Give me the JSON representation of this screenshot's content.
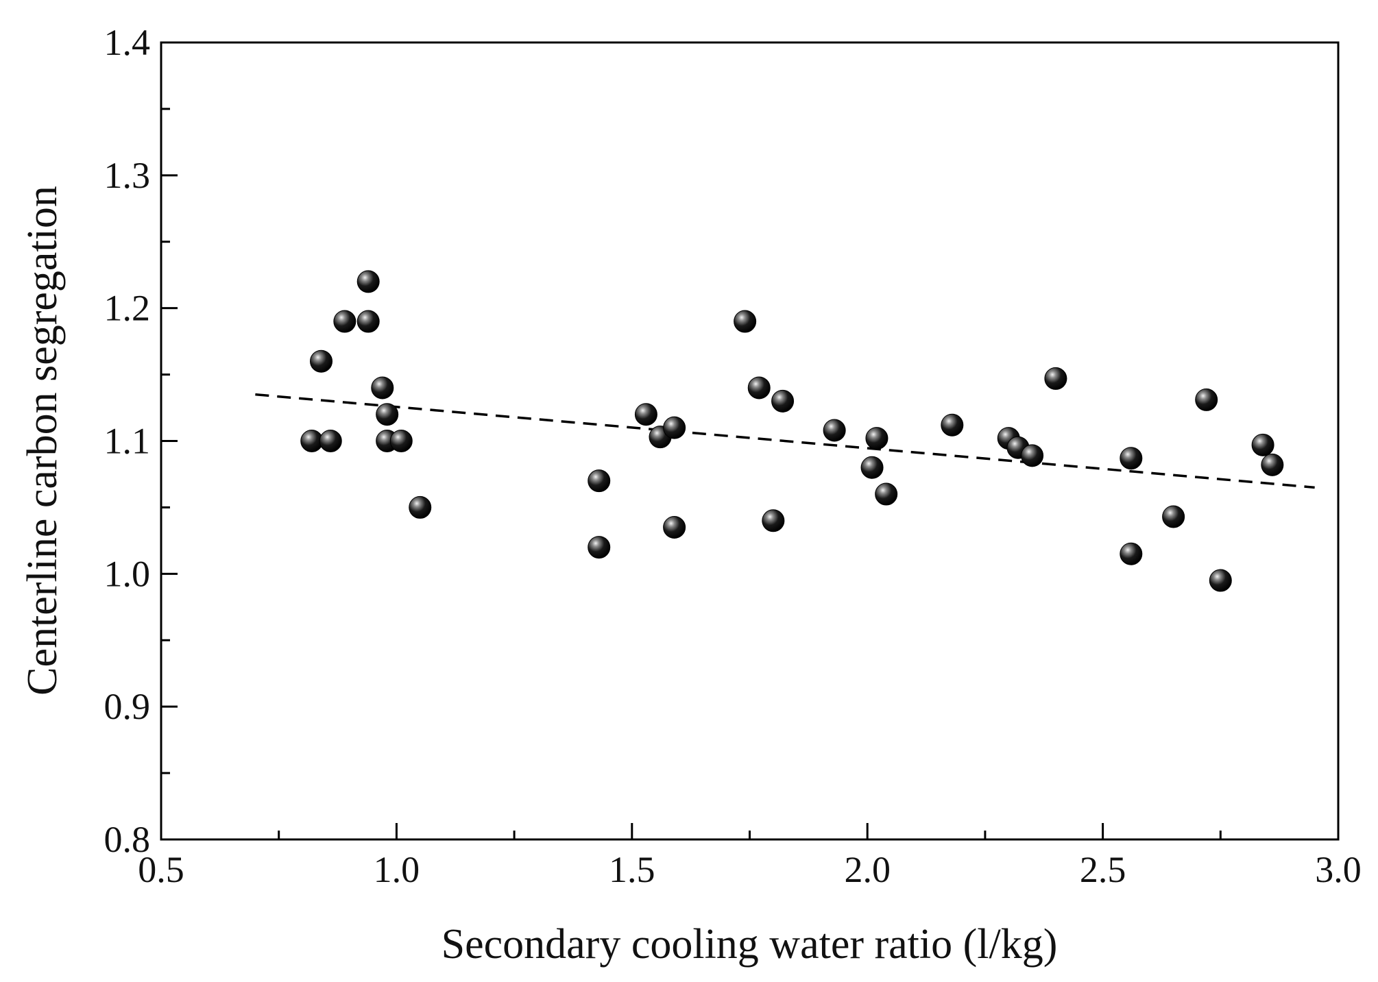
{
  "chart_data": {
    "type": "scatter",
    "title": "",
    "xlabel": "Secondary cooling water ratio (l/kg)",
    "ylabel": "Centerline carbon segregation",
    "xlim": [
      0.5,
      3.0
    ],
    "ylim": [
      0.8,
      1.4
    ],
    "x_ticks": [
      0.5,
      1.0,
      1.5,
      2.0,
      2.5,
      3.0
    ],
    "x_tick_labels": [
      "0.5",
      "1.0",
      "1.5",
      "2.0",
      "2.5",
      "3.0"
    ],
    "y_ticks": [
      0.8,
      0.9,
      1.0,
      1.1,
      1.2,
      1.3,
      1.4
    ],
    "y_tick_labels": [
      "0.8",
      "0.9",
      "1.0",
      "1.1",
      "1.2",
      "1.3",
      "1.4"
    ],
    "grid": false,
    "legend": "none",
    "series": [
      {
        "name": "data",
        "marker": "sphere",
        "color": "#000000",
        "points": [
          [
            0.82,
            1.1
          ],
          [
            0.84,
            1.16
          ],
          [
            0.86,
            1.1
          ],
          [
            0.89,
            1.19
          ],
          [
            0.94,
            1.22
          ],
          [
            0.94,
            1.19
          ],
          [
            0.97,
            1.14
          ],
          [
            0.98,
            1.12
          ],
          [
            0.98,
            1.1
          ],
          [
            1.01,
            1.1
          ],
          [
            1.05,
            1.05
          ],
          [
            1.43,
            1.07
          ],
          [
            1.43,
            1.02
          ],
          [
            1.53,
            1.12
          ],
          [
            1.56,
            1.103
          ],
          [
            1.59,
            1.11
          ],
          [
            1.59,
            1.035
          ],
          [
            1.74,
            1.19
          ],
          [
            1.77,
            1.14
          ],
          [
            1.8,
            1.04
          ],
          [
            1.82,
            1.13
          ],
          [
            1.93,
            1.108
          ],
          [
            2.01,
            1.08
          ],
          [
            2.02,
            1.102
          ],
          [
            2.04,
            1.06
          ],
          [
            2.18,
            1.112
          ],
          [
            2.3,
            1.102
          ],
          [
            2.32,
            1.095
          ],
          [
            2.35,
            1.089
          ],
          [
            2.4,
            1.147
          ],
          [
            2.56,
            1.087
          ],
          [
            2.56,
            1.015
          ],
          [
            2.65,
            1.043
          ],
          [
            2.72,
            1.131
          ],
          [
            2.75,
            0.995
          ],
          [
            2.84,
            1.097
          ],
          [
            2.86,
            1.082
          ]
        ]
      }
    ],
    "trendline": {
      "style": "dashed",
      "color": "#000000",
      "x": [
        0.7,
        2.95
      ],
      "y": [
        1.135,
        1.065
      ]
    }
  }
}
